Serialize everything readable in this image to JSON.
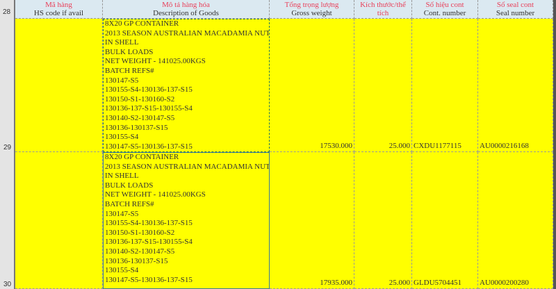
{
  "header_row_number": "28",
  "columns": [
    {
      "vn": "Mã hàng",
      "en": "HS code if avail"
    },
    {
      "vn": "Mô tả hàng hóa",
      "en": "Description of Goods"
    },
    {
      "vn": "Tổng trọng lượng",
      "en": "Gross weight"
    },
    {
      "vn": "Kích thước/thể tích",
      "en": ""
    },
    {
      "vn": "Số hiệu cont",
      "en": "Cont. number"
    },
    {
      "vn": "Số seal cont",
      "en": "Seal number"
    }
  ],
  "rows": [
    {
      "row_number": "29",
      "hs_code": "",
      "description": [
        "8X20 GP CONTAINER",
        "2013 SEASON AUSTRALIAN MACADAMIA NUT",
        "IN SHELL",
        "BULK LOADS",
        "NET WEIGHT - 141025.00KGS",
        "BATCH REFS#",
        "130147-S5",
        "130155-S4-130136-137-S15",
        "130150-S1-130160-S2",
        "130136-137-S15-130155-S4",
        "130140-S2-130147-S5",
        "130136-130137-S15",
        "130155-S4",
        "130147-S5-130136-137-S15"
      ],
      "gross_weight": "17530.000",
      "volume": "25.000",
      "cont_number": "CXDU1177115",
      "seal_number": "AU0000216168"
    },
    {
      "row_number": "30",
      "hs_code": "",
      "description": [
        "8X20 GP CONTAINER",
        "2013 SEASON AUSTRALIAN MACADAMIA NUT",
        "IN SHELL",
        "BULK LOADS",
        "NET WEIGHT - 141025.00KGS",
        "BATCH REFS#",
        "130147-S5",
        "130155-S4-130136-137-S15",
        "130150-S1-130160-S2",
        "130136-137-S15-130155-S4",
        "130140-S2-130147-S5",
        "130136-130137-S15",
        "130155-S4",
        "130147-S5-130136-137-S15"
      ],
      "gross_weight": "17935.000",
      "volume": "25.000",
      "cont_number": "GLDU5704451",
      "seal_number": "AU0000200280"
    }
  ],
  "colors": {
    "cell_fill": "#ffff00",
    "header_fill": "#dbe9f1",
    "header_vn_text": "#e8405a"
  }
}
